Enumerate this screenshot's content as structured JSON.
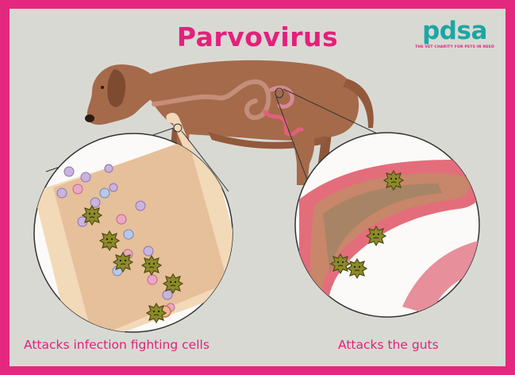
{
  "title": "Parvovirus",
  "brand": {
    "logo": "pdsa",
    "tagline": "THE VET CHARITY FOR PETS IN NEED"
  },
  "captions": {
    "left": "Attacks infection fighting cells",
    "right": "Attacks the guts"
  },
  "icons": [
    "dog-illustration",
    "blood-vessel-magnified",
    "intestine-magnified",
    "virus-particle"
  ],
  "colors": {
    "frame": "#e5287f",
    "background": "#d9d9d4",
    "title": "#e2217c",
    "logo": "#1ba7a4",
    "dog": "#a56a4a",
    "virus": "#8c8a2a"
  }
}
